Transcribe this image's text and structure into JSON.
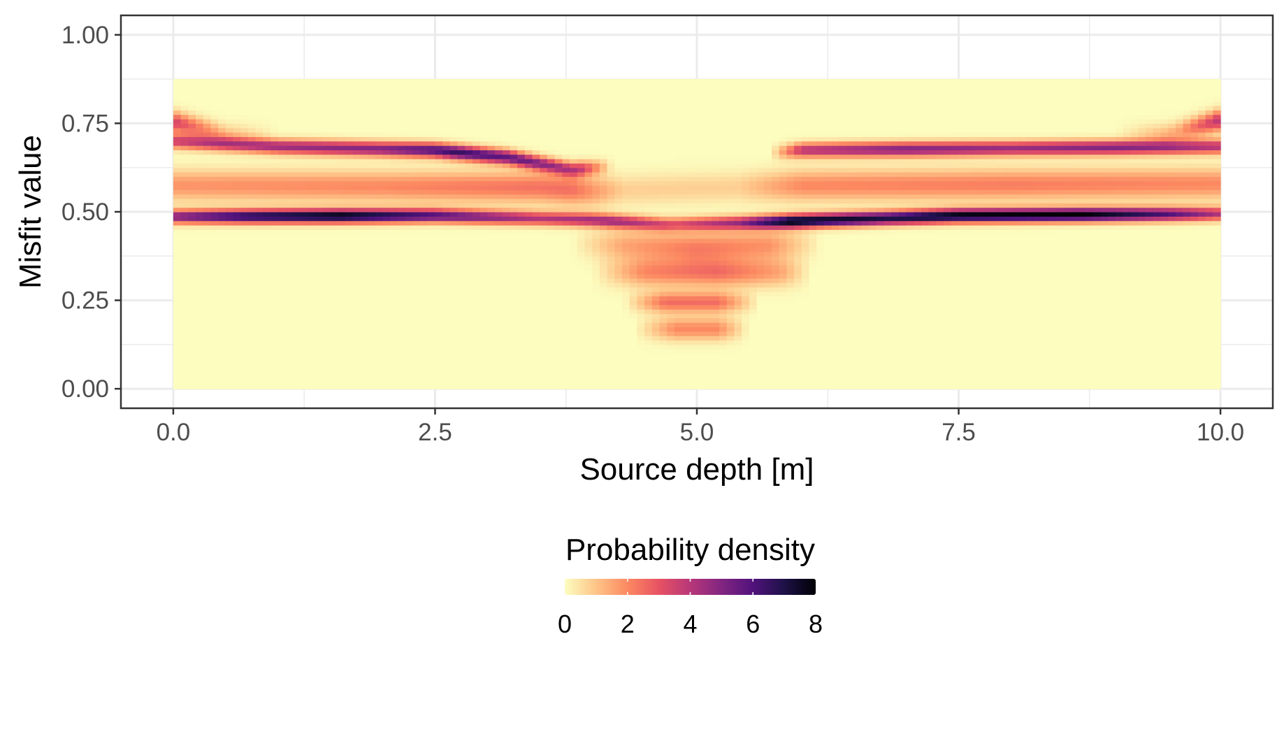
{
  "chart_data": {
    "type": "heatmap",
    "title": "",
    "xlabel": "Source depth [m]",
    "ylabel": "Misfit value",
    "xlim": [
      -0.5,
      10.5
    ],
    "ylim": [
      -0.055,
      1.055
    ],
    "x_ticks": [
      0.0,
      2.5,
      5.0,
      7.5,
      10.0
    ],
    "x_tick_labels": [
      "0.0",
      "2.5",
      "5.0",
      "7.5",
      "10.0"
    ],
    "y_ticks": [
      0.0,
      0.25,
      0.5,
      0.75,
      1.0
    ],
    "y_tick_labels": [
      "0.00",
      "0.25",
      "0.50",
      "0.75",
      "1.00"
    ],
    "x_minor": [
      1.25,
      3.75,
      6.25,
      8.75
    ],
    "y_minor": [
      0.125,
      0.375,
      0.625,
      0.875
    ],
    "grid": true,
    "data_extent": {
      "x": [
        0.0,
        10.0
      ],
      "y": [
        0.0,
        0.875
      ]
    },
    "density_bands": [
      {
        "label": "main band at 0.50",
        "y_center": [
          [
            0.0,
            0.487
          ],
          [
            2.5,
            0.49
          ],
          [
            4.0,
            0.478
          ],
          [
            4.7,
            0.465
          ],
          [
            5.5,
            0.47
          ],
          [
            7.5,
            0.49
          ],
          [
            10.0,
            0.495
          ]
        ],
        "width": 0.013,
        "peak": [
          [
            0.0,
            5.0
          ],
          [
            0.7,
            7.0
          ],
          [
            1.6,
            8.0
          ],
          [
            2.5,
            6.0
          ],
          [
            3.5,
            4.0
          ],
          [
            4.2,
            4.5
          ],
          [
            4.8,
            3.0
          ],
          [
            5.4,
            4.5
          ],
          [
            5.9,
            8.0
          ],
          [
            6.8,
            7.0
          ],
          [
            7.5,
            8.0
          ],
          [
            8.7,
            8.0
          ],
          [
            9.5,
            6.0
          ],
          [
            10.0,
            4.0
          ]
        ]
      },
      {
        "label": "upper band at 0.69",
        "y_center": [
          [
            0.0,
            0.7
          ],
          [
            1.0,
            0.685
          ],
          [
            2.5,
            0.675
          ],
          [
            3.2,
            0.655
          ],
          [
            3.8,
            0.62
          ],
          [
            6.0,
            0.675
          ],
          [
            8.0,
            0.68
          ],
          [
            10.0,
            0.685
          ]
        ],
        "width": 0.014,
        "peak": [
          [
            0.0,
            3.5
          ],
          [
            1.0,
            4.5
          ],
          [
            2.0,
            5.0
          ],
          [
            2.7,
            6.5
          ],
          [
            3.3,
            5.5
          ],
          [
            3.9,
            3.5
          ],
          [
            4.2,
            0.0
          ],
          [
            5.7,
            0.0
          ],
          [
            6.0,
            4.0
          ],
          [
            7.0,
            5.0
          ],
          [
            8.0,
            4.5
          ],
          [
            9.0,
            5.0
          ],
          [
            10.0,
            4.0
          ]
        ]
      },
      {
        "label": "top-edge band at 0.76",
        "y_center": [
          [
            0.0,
            0.755
          ],
          [
            0.5,
            0.72
          ],
          [
            9.5,
            0.72
          ],
          [
            10.0,
            0.76
          ]
        ],
        "width": 0.02,
        "peak": [
          [
            0.0,
            3.5
          ],
          [
            0.5,
            1.0
          ],
          [
            1.0,
            0.0
          ],
          [
            9.0,
            0.0
          ],
          [
            9.6,
            1.5
          ],
          [
            10.0,
            4.0
          ]
        ]
      },
      {
        "label": "mid band at 0.58",
        "y_center": [
          [
            0.0,
            0.575
          ],
          [
            3.5,
            0.57
          ],
          [
            4.0,
            0.56
          ],
          [
            6.0,
            0.575
          ],
          [
            10.0,
            0.58
          ]
        ],
        "width": 0.03,
        "peak": [
          [
            0.0,
            1.8
          ],
          [
            2.0,
            2.0
          ],
          [
            3.8,
            2.5
          ],
          [
            4.3,
            0.8
          ],
          [
            5.4,
            0.8
          ],
          [
            6.0,
            2.0
          ],
          [
            8.0,
            2.2
          ],
          [
            10.0,
            2.0
          ]
        ]
      },
      {
        "label": "lower band at 0.40",
        "y_center": [
          [
            3.9,
            0.41
          ],
          [
            5.0,
            0.4
          ],
          [
            6.0,
            0.41
          ]
        ],
        "width": 0.03,
        "peak": [
          [
            3.8,
            0.0
          ],
          [
            4.3,
            1.5
          ],
          [
            5.0,
            2.2
          ],
          [
            5.7,
            1.8
          ],
          [
            6.2,
            0.0
          ]
        ]
      },
      {
        "label": "lower band at 0.33",
        "y_center": [
          [
            4.0,
            0.33
          ],
          [
            5.0,
            0.33
          ],
          [
            6.0,
            0.33
          ]
        ],
        "width": 0.028,
        "peak": [
          [
            4.0,
            0.0
          ],
          [
            4.5,
            2.0
          ],
          [
            5.2,
            2.5
          ],
          [
            5.8,
            1.5
          ],
          [
            6.1,
            0.0
          ]
        ]
      },
      {
        "label": "lower band at 0.25",
        "y_center": [
          [
            4.3,
            0.245
          ],
          [
            5.0,
            0.245
          ],
          [
            5.6,
            0.245
          ]
        ],
        "width": 0.02,
        "peak": [
          [
            4.3,
            0.0
          ],
          [
            4.7,
            2.5
          ],
          [
            5.2,
            2.5
          ],
          [
            5.6,
            0.0
          ]
        ]
      },
      {
        "label": "lower band at 0.17",
        "y_center": [
          [
            4.4,
            0.17
          ],
          [
            5.0,
            0.17
          ],
          [
            5.5,
            0.17
          ]
        ],
        "width": 0.022,
        "peak": [
          [
            4.4,
            0.0
          ],
          [
            4.8,
            2.0
          ],
          [
            5.2,
            2.0
          ],
          [
            5.5,
            0.0
          ]
        ]
      }
    ],
    "legend": {
      "title": "Probability density",
      "position": "bottom",
      "min": 0,
      "max": 8,
      "breaks": [
        0,
        2,
        4,
        6,
        8
      ],
      "break_labels": [
        "0",
        "2",
        "4",
        "6",
        "8"
      ],
      "palette": [
        "#fcfdbf",
        "#fec488",
        "#fc8961",
        "#e75263",
        "#b73779",
        "#812581",
        "#51127c",
        "#1d1147",
        "#000004"
      ]
    }
  }
}
